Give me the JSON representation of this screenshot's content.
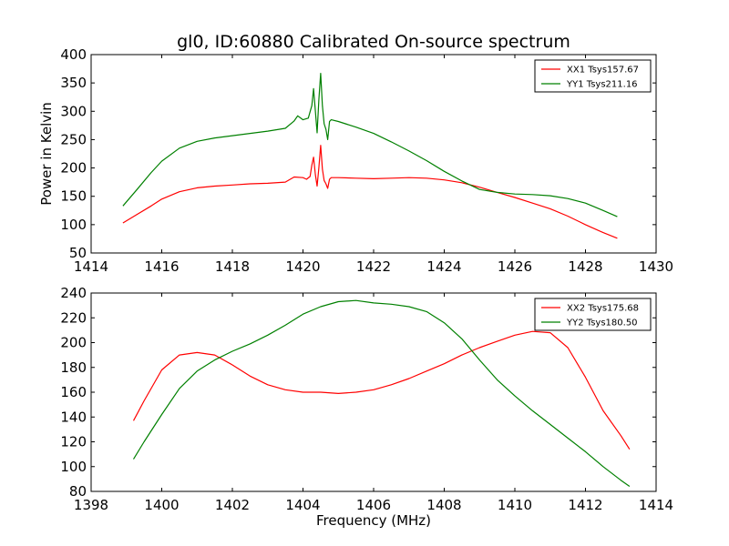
{
  "chart_data": [
    {
      "type": "line",
      "title": "gl0, ID:60880 Calibrated On-source spectrum",
      "xlabel": "",
      "ylabel": "Power in Kelvin",
      "xlim": [
        1414,
        1430
      ],
      "ylim": [
        50,
        400
      ],
      "xticks": [
        1414,
        1416,
        1418,
        1420,
        1422,
        1424,
        1426,
        1428,
        1430
      ],
      "yticks": [
        50,
        100,
        150,
        200,
        250,
        300,
        350,
        400
      ],
      "legend_loc": "top-right",
      "grid": false,
      "series": [
        {
          "name": "XX1 Tsys157.67",
          "color": "#ff0000",
          "x": [
            1414.9,
            1415.3,
            1415.7,
            1416.0,
            1416.5,
            1417.0,
            1417.5,
            1418.0,
            1418.5,
            1419.0,
            1419.5,
            1419.75,
            1420.0,
            1420.1,
            1420.2,
            1420.25,
            1420.3,
            1420.35,
            1420.4,
            1420.45,
            1420.5,
            1420.55,
            1420.6,
            1420.65,
            1420.7,
            1420.75,
            1420.8,
            1421.0,
            1421.5,
            1422.0,
            1422.5,
            1423.0,
            1423.5,
            1424.0,
            1424.5,
            1425.0,
            1425.5,
            1426.0,
            1426.5,
            1427.0,
            1427.5,
            1428.0,
            1428.5,
            1428.9
          ],
          "y": [
            103,
            118,
            133,
            145,
            158,
            165,
            168,
            170,
            172,
            173,
            175,
            184,
            183,
            180,
            185,
            205,
            219,
            188,
            168,
            200,
            240,
            198,
            178,
            172,
            164,
            180,
            183,
            183,
            182,
            181,
            182,
            183,
            182,
            179,
            174,
            166,
            157,
            148,
            138,
            128,
            115,
            100,
            86,
            76
          ]
        },
        {
          "name": "YY1 Tsys211.16",
          "color": "#008000",
          "x": [
            1414.9,
            1415.3,
            1415.7,
            1416.0,
            1416.5,
            1417.0,
            1417.5,
            1418.0,
            1418.5,
            1419.0,
            1419.5,
            1419.75,
            1419.85,
            1420.0,
            1420.15,
            1420.25,
            1420.3,
            1420.35,
            1420.4,
            1420.45,
            1420.5,
            1420.55,
            1420.6,
            1420.65,
            1420.7,
            1420.75,
            1420.8,
            1421.0,
            1421.5,
            1422.0,
            1422.5,
            1423.0,
            1423.5,
            1424.0,
            1424.5,
            1425.0,
            1425.5,
            1426.0,
            1426.5,
            1427.0,
            1427.5,
            1428.0,
            1428.5,
            1428.9
          ],
          "y": [
            133,
            162,
            192,
            212,
            235,
            247,
            253,
            257,
            261,
            265,
            270,
            283,
            292,
            285,
            288,
            310,
            340,
            300,
            262,
            320,
            367,
            310,
            278,
            268,
            250,
            282,
            285,
            282,
            272,
            261,
            246,
            230,
            213,
            194,
            177,
            162,
            157,
            154,
            153,
            151,
            146,
            138,
            125,
            114
          ]
        }
      ]
    },
    {
      "type": "line",
      "title": "",
      "xlabel": "Frequency (MHz)",
      "ylabel": "",
      "xlim": [
        1398,
        1414
      ],
      "ylim": [
        80,
        240
      ],
      "xticks": [
        1398,
        1400,
        1402,
        1404,
        1406,
        1408,
        1410,
        1412,
        1414
      ],
      "yticks": [
        80,
        100,
        120,
        140,
        160,
        180,
        200,
        220,
        240
      ],
      "legend_loc": "top-right",
      "grid": false,
      "series": [
        {
          "name": "XX2 Tsys175.68",
          "color": "#ff0000",
          "x": [
            1399.2,
            1399.5,
            1400.0,
            1400.5,
            1401.0,
            1401.5,
            1402.0,
            1402.5,
            1403.0,
            1403.5,
            1404.0,
            1404.5,
            1405.0,
            1405.5,
            1406.0,
            1406.5,
            1407.0,
            1407.5,
            1408.0,
            1408.5,
            1409.0,
            1409.5,
            1410.0,
            1410.5,
            1411.0,
            1411.5,
            1412.0,
            1412.5,
            1413.0,
            1413.25
          ],
          "y": [
            137,
            153,
            178,
            190,
            192,
            190,
            182,
            173,
            166,
            162,
            160,
            160,
            159,
            160,
            162,
            166,
            171,
            177,
            183,
            190,
            196,
            201,
            206,
            209,
            208,
            196,
            172,
            145,
            125,
            114
          ]
        },
        {
          "name": "YY2 Tsys180.50",
          "color": "#008000",
          "x": [
            1399.2,
            1399.5,
            1400.0,
            1400.5,
            1401.0,
            1401.5,
            1402.0,
            1402.5,
            1403.0,
            1403.5,
            1404.0,
            1404.5,
            1405.0,
            1405.5,
            1406.0,
            1406.5,
            1407.0,
            1407.5,
            1408.0,
            1408.5,
            1409.0,
            1409.5,
            1410.0,
            1410.5,
            1411.0,
            1411.5,
            1412.0,
            1412.5,
            1413.0,
            1413.25
          ],
          "y": [
            106,
            120,
            142,
            163,
            177,
            186,
            193,
            199,
            206,
            214,
            223,
            229,
            233,
            234,
            232,
            231,
            229,
            225,
            216,
            203,
            186,
            170,
            157,
            145,
            134,
            123,
            112,
            100,
            89,
            84
          ]
        }
      ]
    }
  ]
}
